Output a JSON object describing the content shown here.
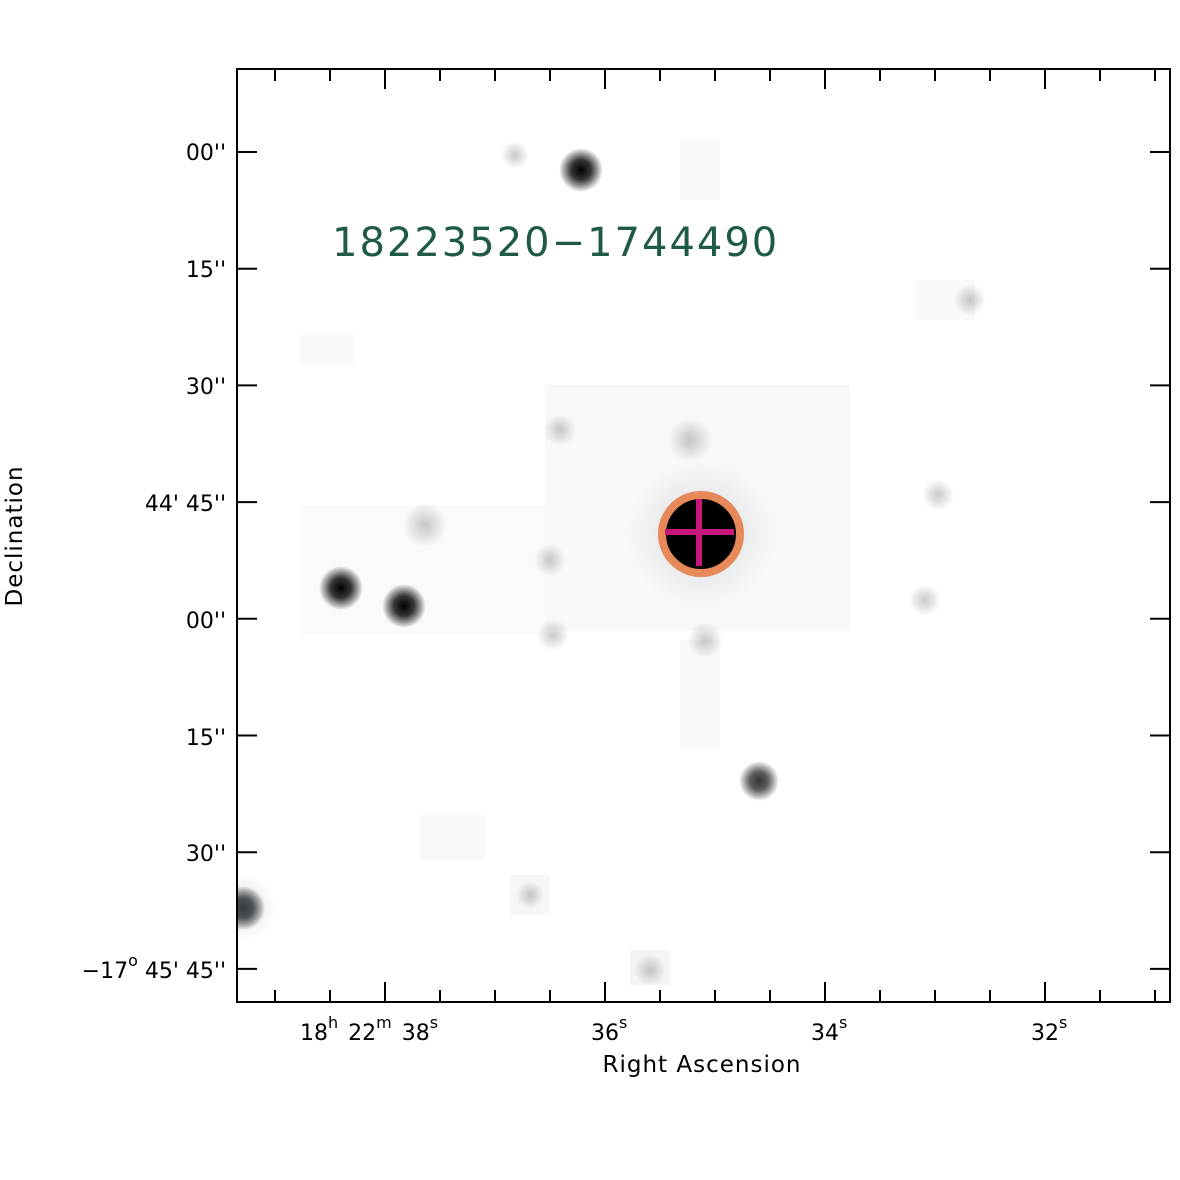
{
  "figure": {
    "source_label": "18223520−1744490",
    "source_label_color": "#1f5a44",
    "x_axis_title": "Right Ascension",
    "y_axis_title": "Declination",
    "x_tick_labels": [
      {
        "h": "18",
        "h_unit": "h",
        "m": "22",
        "m_unit": "m",
        "s": "38",
        "s_unit": "s"
      },
      {
        "s": "36",
        "s_unit": "s"
      },
      {
        "s": "34",
        "s_unit": "s"
      },
      {
        "s": "32",
        "s_unit": "s"
      }
    ],
    "y_tick_labels": [
      {
        "text": "00''"
      },
      {
        "text": "15''"
      },
      {
        "text": "30''"
      },
      {
        "text": "44' 45''"
      },
      {
        "text": "00''"
      },
      {
        "text": "15''"
      },
      {
        "text": "30''"
      },
      {
        "deg": "−17",
        "deg_unit": "o",
        "rest": " 45' 45''"
      }
    ],
    "marker": {
      "circle_color": "#e8895a",
      "cross_color": "#c8177a"
    }
  }
}
